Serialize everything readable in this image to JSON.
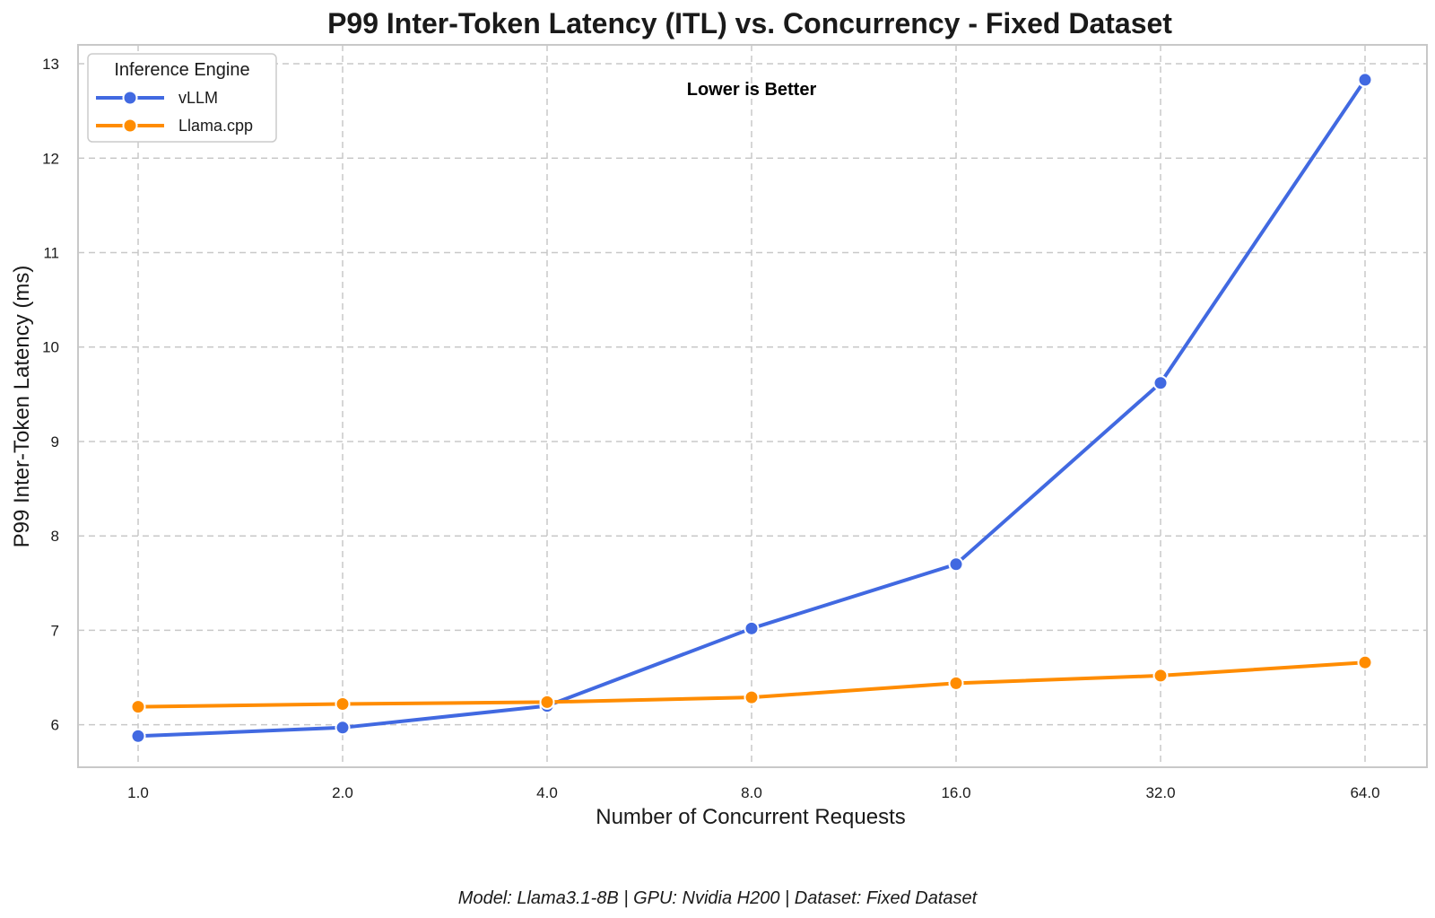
{
  "chart_data": {
    "type": "line",
    "title": "P99 Inter-Token Latency (ITL) vs. Concurrency - Fixed Dataset",
    "xlabel": "Number of Concurrent Requests",
    "ylabel": "P99 Inter-Token Latency (ms)",
    "categories": [
      "1.0",
      "2.0",
      "4.0",
      "8.0",
      "16.0",
      "32.0",
      "64.0"
    ],
    "ylim": [
      5.55,
      13.2
    ],
    "yticks": [
      6,
      7,
      8,
      9,
      10,
      11,
      12,
      13
    ],
    "grid": true,
    "legend": {
      "title": "Inference Engine",
      "placement": "top-left"
    },
    "annotation": "Lower is Better",
    "footer": "Model: Llama3.1-8B | GPU: Nvidia H200 | Dataset: Fixed Dataset",
    "series": [
      {
        "name": "vLLM",
        "color": "#4169e1",
        "values": [
          5.88,
          5.97,
          6.2,
          7.02,
          7.7,
          9.62,
          12.83
        ]
      },
      {
        "name": "Llama.cpp",
        "color": "#ff8c00",
        "values": [
          6.19,
          6.22,
          6.24,
          6.29,
          6.44,
          6.52,
          6.66
        ]
      }
    ]
  }
}
